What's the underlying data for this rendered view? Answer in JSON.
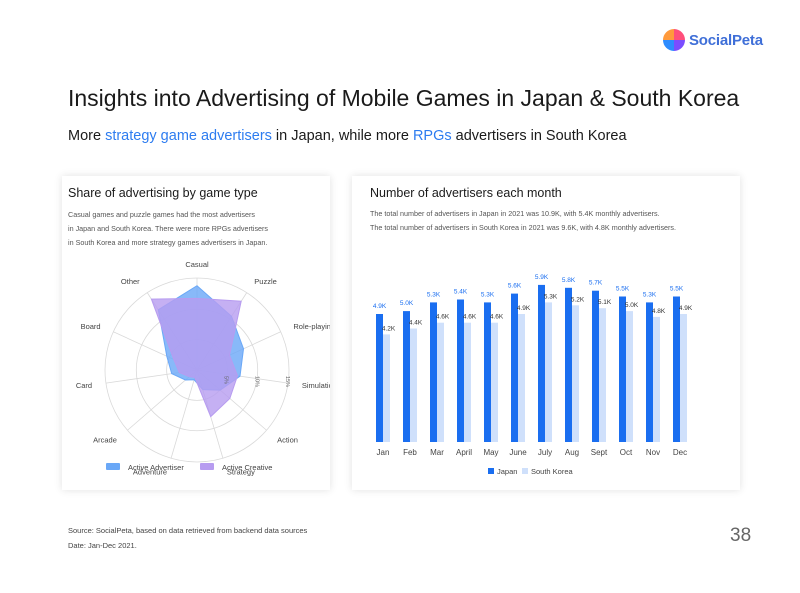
{
  "logo": {
    "text": "SocialPeta"
  },
  "title": "Insights into Advertising of Mobile Games in Japan & South Korea",
  "subtitle": {
    "pre": "More ",
    "hl1": "strategy game advertisers",
    "mid": " in Japan, while more ",
    "hl2": "RPGs",
    "post": " advertisers in South Korea"
  },
  "radar": {
    "title": "Share of advertising by game type",
    "note_lines": [
      "Casual games and puzzle games had the most advertisers",
      "in Japan and South Korea. There were more RPGs advertisers",
      "in South Korea and more strategy games advertisers in Japan."
    ]
  },
  "bars": {
    "title": "Number of advertisers each month",
    "note_lines": [
      "The total number of advertisers in Japan in 2021 was 10.9K, with 5.4K monthly advertisers.",
      "The total number of advertisers in South Korea in 2021 was 9.6K, with 4.8K monthly advertisers."
    ]
  },
  "chart_data": [
    {
      "type": "radar",
      "title": "Share of advertising by game type",
      "categories": [
        "Casual",
        "Puzzle",
        "Role-playing",
        "Simulation",
        "Action",
        "Strategy",
        "Adventure",
        "Arcade",
        "Card",
        "Board",
        "Other"
      ],
      "axis_tick_labels": [
        "5%",
        "10%",
        "15%"
      ],
      "series": [
        {
          "name": "Active Advertiser",
          "color": "#6aa8f7",
          "values": [
            16.5,
            12.5,
            10,
            8.5,
            6,
            4,
            2,
            3,
            5,
            6.5,
            14
          ]
        },
        {
          "name": "Active Creative",
          "color": "#b79cf0",
          "values": [
            14,
            16,
            7,
            8,
            8.5,
            9.5,
            1.5,
            2,
            3.5,
            5,
            16.5
          ]
        }
      ],
      "legend": "bottom"
    },
    {
      "type": "bar",
      "title": "Number of advertisers each month",
      "categories": [
        "Jan",
        "Feb",
        "Mar",
        "April",
        "May",
        "June",
        "July",
        "Aug",
        "Sept",
        "Oct",
        "Nov",
        "Dec"
      ],
      "series": [
        {
          "name": "Japan",
          "color": "#1a6ef0",
          "values": [
            4.9,
            5.0,
            5.3,
            5.4,
            5.3,
            5.6,
            5.9,
            5.8,
            5.7,
            5.5,
            5.3,
            5.5
          ],
          "labels": [
            "4.9K",
            "5.0K",
            "5.3K",
            "5.4K",
            "5.3K",
            "5.6K",
            "5.9K",
            "5.8K",
            "5.7K",
            "5.5K",
            "5.3K",
            "5.5K"
          ]
        },
        {
          "name": "South Korea",
          "color": "#cfe0fb",
          "values": [
            4.2,
            4.4,
            4.6,
            4.6,
            4.6,
            4.9,
            5.3,
            5.2,
            5.1,
            5.0,
            4.8,
            4.9
          ],
          "labels": [
            "4.2K",
            "4.4K",
            "4.6K",
            "4.6K",
            "4.6K",
            "4.9K",
            "5.3K",
            "5.2K",
            "5.1K",
            "5.0K",
            "4.8K",
            "4.9K"
          ]
        }
      ],
      "legend": "bottom",
      "grid": false
    }
  ],
  "footer": {
    "source": "Source: SocialPeta, based on data retrieved from backend data sources",
    "date": "Date: Jan-Dec 2021."
  },
  "page_number": "38"
}
